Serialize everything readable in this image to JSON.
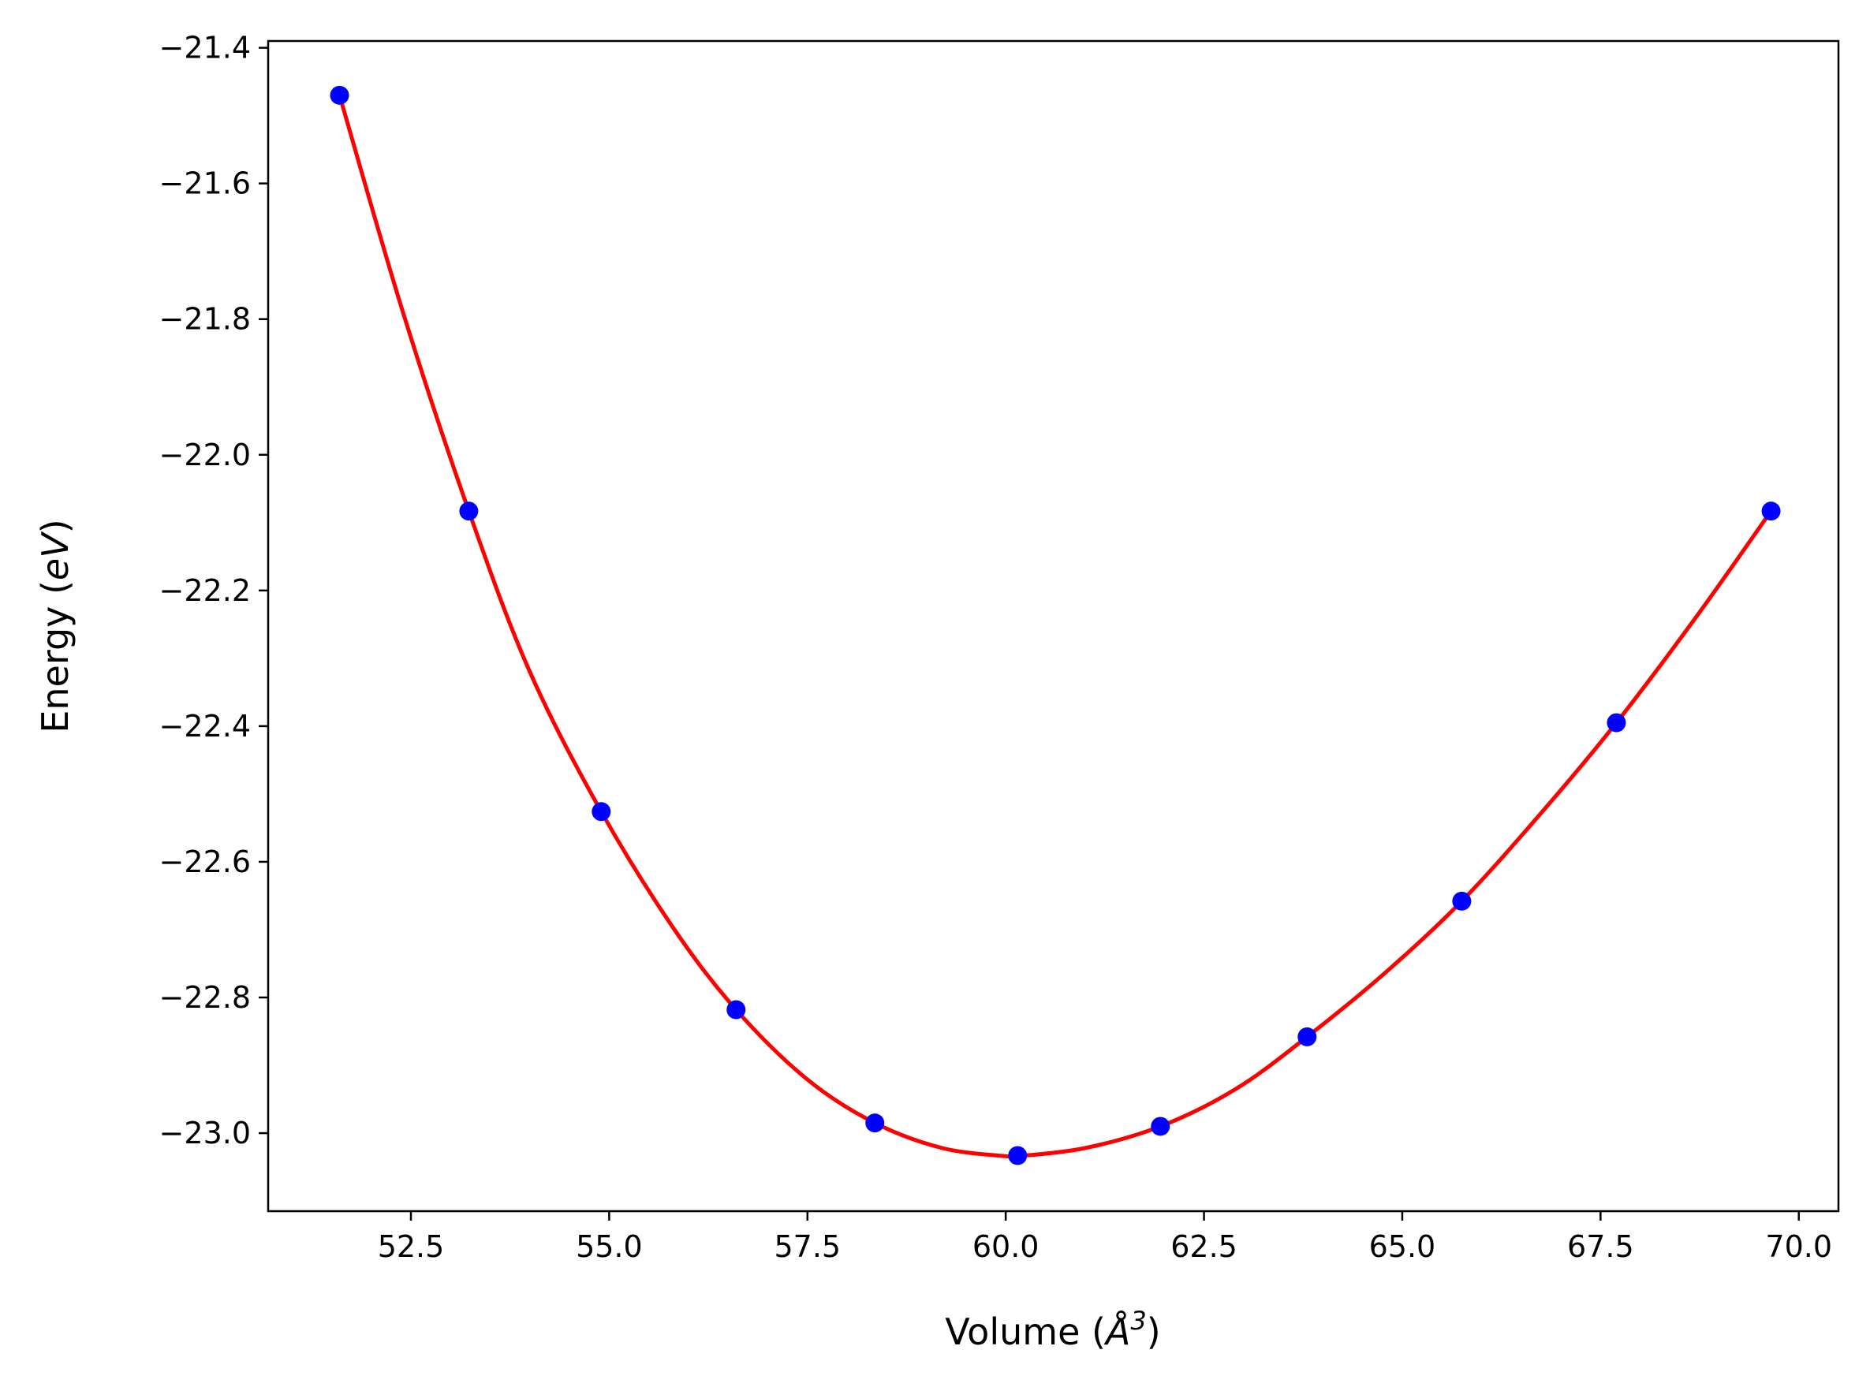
{
  "chart_data": {
    "type": "scatter",
    "xlabel_main": "Volume (",
    "xlabel_symbol": "Å",
    "xlabel_exp": "3",
    "xlabel_close": ")",
    "ylabel_main": "Energy (",
    "ylabel_unit": "eV",
    "ylabel_close": ")",
    "xlim": [
      50.7,
      70.5
    ],
    "ylim": [
      -23.115,
      -21.39
    ],
    "xticks": [
      52.5,
      55.0,
      57.5,
      60.0,
      62.5,
      65.0,
      67.5,
      70.0
    ],
    "xtick_labels": [
      "52.5",
      "55.0",
      "57.5",
      "60.0",
      "62.5",
      "65.0",
      "67.5",
      "70.0"
    ],
    "yticks": [
      -23.0,
      -22.8,
      -22.6,
      -22.4,
      -22.2,
      -22.0,
      -21.8,
      -21.6,
      -21.4
    ],
    "ytick_labels": [
      "−23.0",
      "−22.8",
      "−22.6",
      "−22.4",
      "−22.2",
      "−22.0",
      "−21.8",
      "−21.6",
      "−21.4"
    ],
    "grid": false,
    "series": [
      {
        "kind": "points",
        "color": "#0000ff",
        "x": [
          51.6,
          53.23,
          54.9,
          56.6,
          58.35,
          60.15,
          61.95,
          63.8,
          65.75,
          67.7,
          69.65
        ],
        "y": [
          -21.47,
          -22.083,
          -22.526,
          -22.818,
          -22.985,
          -23.033,
          -22.99,
          -22.858,
          -22.658,
          -22.395,
          -22.083
        ]
      },
      {
        "kind": "fit-curve",
        "color": "#ff0000",
        "x": [
          51.6,
          52.4,
          53.23,
          54.0,
          54.9,
          55.8,
          56.6,
          57.5,
          58.35,
          59.2,
          60.0,
          60.15,
          61.0,
          61.95,
          62.9,
          63.8,
          64.8,
          65.75,
          66.7,
          67.7,
          68.7,
          69.65
        ],
        "y": [
          -21.47,
          -21.79,
          -22.083,
          -22.32,
          -22.526,
          -22.696,
          -22.818,
          -22.921,
          -22.985,
          -23.022,
          -23.034,
          -23.034,
          -23.022,
          -22.99,
          -22.935,
          -22.858,
          -22.762,
          -22.658,
          -22.535,
          -22.395,
          -22.24,
          -22.083
        ]
      }
    ]
  }
}
